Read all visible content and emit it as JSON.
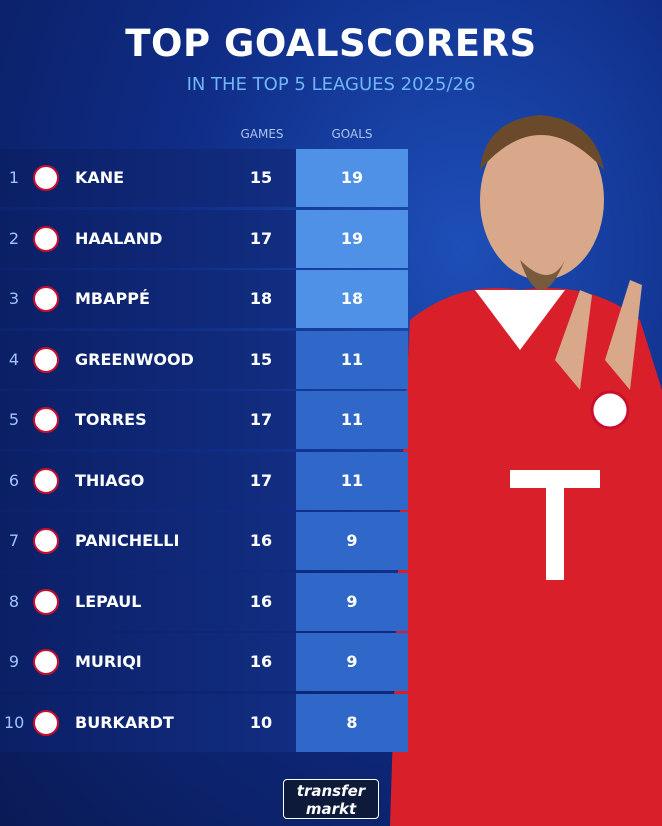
{
  "header": {
    "title": "TOP GOALSCORERS",
    "subtitle": "IN THE TOP 5 LEAGUES 2025/26"
  },
  "table": {
    "columns": [
      "GAMES",
      "GOALS"
    ],
    "rows": [
      [
        1,
        "KANE",
        15,
        19
      ],
      [
        2,
        "HAALAND",
        17,
        19
      ],
      [
        3,
        "MBAPPÉ",
        18,
        18
      ],
      [
        4,
        "GREENWOOD",
        15,
        11
      ],
      [
        5,
        "TORRES",
        17,
        11
      ],
      [
        6,
        "THIAGO",
        17,
        11
      ],
      [
        7,
        "PANICHELLI",
        16,
        9
      ],
      [
        8,
        "LEPAUL",
        16,
        9
      ],
      [
        9,
        "MURIQI",
        16,
        9
      ],
      [
        10,
        "BURKARDT",
        10,
        8
      ]
    ]
  },
  "logo": [
    "transfer",
    "markt"
  ]
}
